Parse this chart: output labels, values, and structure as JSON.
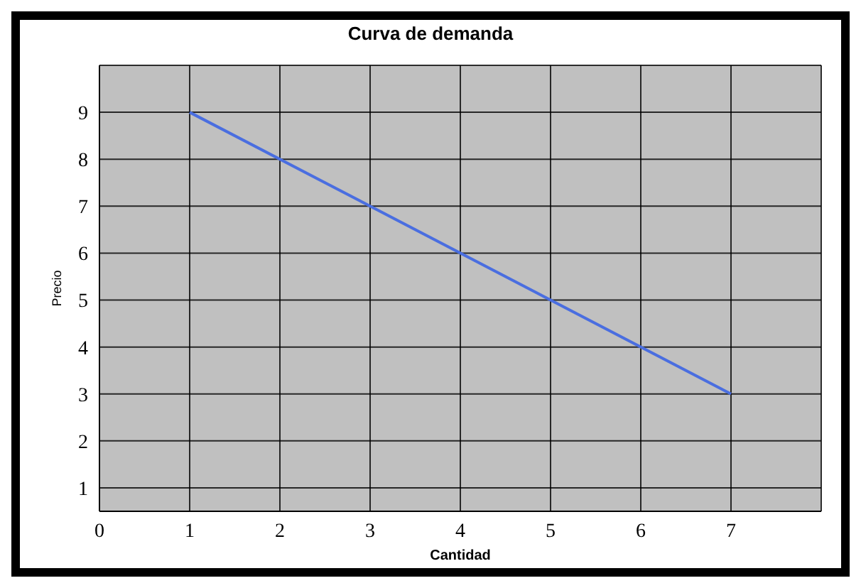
{
  "chart_data": {
    "type": "line",
    "title": "Curva de demanda",
    "xlabel": "Cantidad",
    "ylabel": "Precio",
    "x": [
      1,
      7
    ],
    "series": [
      {
        "color": "#4a6ee0",
        "values": [
          9,
          3
        ]
      }
    ],
    "xlim": [
      0,
      8
    ],
    "xticks": [
      0,
      1,
      2,
      3,
      4,
      5,
      6,
      7
    ],
    "ylim": [
      0.5,
      10
    ],
    "yticks": [
      1,
      2,
      3,
      4,
      5,
      6,
      7,
      8,
      9
    ],
    "grid": true,
    "marker": "none",
    "line_style": "solid"
  }
}
